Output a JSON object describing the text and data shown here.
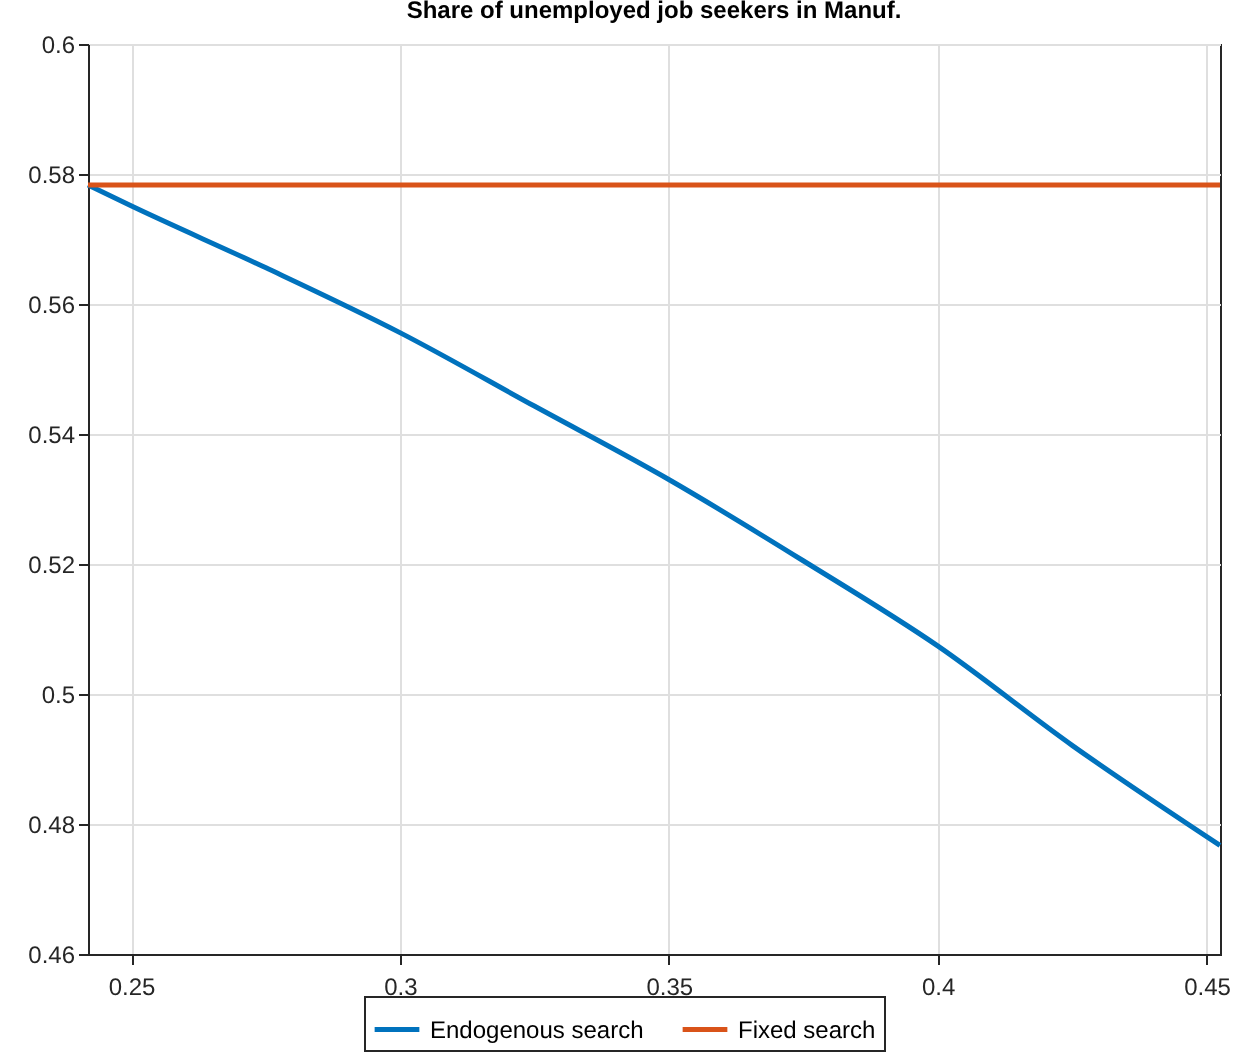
{
  "chart_data": {
    "type": "line",
    "title": "Share of unemployed job seekers in Manuf.",
    "x": [
      0.242,
      0.25,
      0.275,
      0.3,
      0.325,
      0.35,
      0.375,
      0.4,
      0.425,
      0.4525
    ],
    "series": [
      {
        "name": "Endogenous search",
        "color": "#0072bd",
        "values": [
          0.5783,
          0.5751,
          0.5656,
          0.5556,
          0.5443,
          0.533,
          0.5205,
          0.5074,
          0.4921,
          0.4767
        ]
      },
      {
        "name": "Fixed search",
        "color": "#d95319",
        "values": [
          0.5783,
          0.5783,
          0.5783,
          0.5783,
          0.5783,
          0.5783,
          0.5783,
          0.5783,
          0.5783,
          0.5783
        ]
      }
    ],
    "xlim": [
      0.242,
      0.4525
    ],
    "xticks": [
      0.25,
      0.3,
      0.35,
      0.4,
      0.45
    ],
    "ylim": [
      0.46,
      0.6
    ],
    "yticks": [
      0.46,
      0.48,
      0.5,
      0.52,
      0.54,
      0.56,
      0.58,
      0.6
    ],
    "grid": true,
    "legend": "bottom",
    "marker": "none",
    "line_style": "solid"
  }
}
